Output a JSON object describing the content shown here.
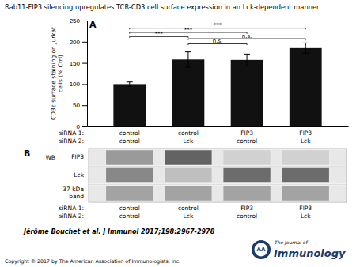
{
  "chart_data": {
    "type": "bar",
    "title": "Rab11-FIP3 silencing upregulates TCR-CD3 cell surface expression in an Lck-dependent manner.",
    "panel_label": "A",
    "categories": [
      [
        "control",
        "control"
      ],
      [
        "control",
        "Lck"
      ],
      [
        "FIP3",
        "control"
      ],
      [
        "FIP3",
        "Lck"
      ]
    ],
    "category_row_labels": [
      "siRNA 1:",
      "siRNA 2:"
    ],
    "values": [
      100,
      158,
      157,
      185
    ],
    "errors": [
      5,
      18,
      14,
      12
    ],
    "color": "#111111",
    "ylim": [
      0,
      250
    ],
    "yticks": [
      0,
      50,
      100,
      150,
      200,
      250
    ],
    "ylabel": "CD3ε surface staining on Jurkat\ncells (% Ctrl)",
    "significance": [
      {
        "from": 0,
        "to": 1,
        "y": 212,
        "label": "***"
      },
      {
        "from": 0,
        "to": 2,
        "y": 222,
        "label": "***"
      },
      {
        "from": 0,
        "to": 3,
        "y": 232,
        "label": "***"
      },
      {
        "from": 1,
        "to": 2,
        "y": 195,
        "label": "n.s."
      },
      {
        "from": 1,
        "to": 3,
        "y": 207,
        "label": "n.s."
      }
    ],
    "western_blot": {
      "panel_label": "B",
      "header": "WB",
      "rows": [
        {
          "name": "FIP3",
          "intensities": [
            0.55,
            0.85,
            0.25,
            0.25
          ]
        },
        {
          "name": "Lck",
          "intensities": [
            0.65,
            0.35,
            0.8,
            0.8
          ]
        },
        {
          "name": "37 kDa\nband",
          "intensities": [
            0.5,
            0.5,
            0.5,
            0.5
          ]
        }
      ]
    },
    "citation": "Jérôme Bouchet et al. J Immunol 2017;198:2967-2978",
    "footer": "Copyright © 2017 by The American Association of Immunologists, Inc.",
    "logo": {
      "emblem": "AA",
      "line1": "The Journal of",
      "line2": "Immunology",
      "color": "#1a3a6b"
    }
  }
}
